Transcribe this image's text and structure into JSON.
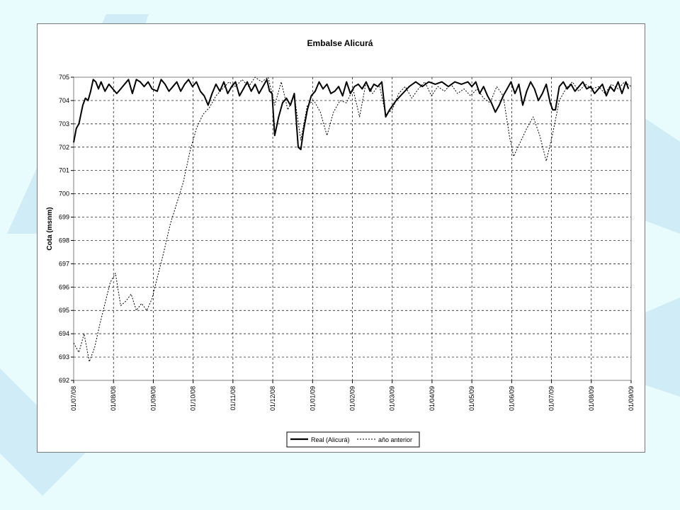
{
  "chart_data": {
    "type": "line",
    "title": "Embalse Alicurá",
    "xlabel": "",
    "ylabel": "Cota (msnm)",
    "ylim": [
      692,
      705
    ],
    "yticks": [
      692,
      693,
      694,
      695,
      696,
      697,
      698,
      699,
      700,
      701,
      702,
      703,
      704,
      705
    ],
    "xlim": [
      "2008-07-01",
      "2009-09-01"
    ],
    "xticks": [
      "01/07/08",
      "01/08/08",
      "01/09/08",
      "01/10/08",
      "01/11/08",
      "01/12/08",
      "01/01/09",
      "01/02/09",
      "01/03/09",
      "01/04/09",
      "01/05/09",
      "01/06/09",
      "01/07/09",
      "01/08/09",
      "01/09/09"
    ],
    "grid": true,
    "legend_position": "bottom-center",
    "series": [
      {
        "name": "Real (Alicurá)",
        "style": "solid-bold",
        "color": "#000000",
        "x": [
          "2008-07-01",
          "2008-07-03",
          "2008-07-05",
          "2008-07-08",
          "2008-07-10",
          "2008-07-12",
          "2008-07-14",
          "2008-07-16",
          "2008-07-18",
          "2008-07-20",
          "2008-07-22",
          "2008-07-25",
          "2008-07-28",
          "2008-07-31",
          "2008-08-03",
          "2008-08-06",
          "2008-08-09",
          "2008-08-12",
          "2008-08-15",
          "2008-08-18",
          "2008-08-21",
          "2008-08-24",
          "2008-08-27",
          "2008-08-30",
          "2008-09-03",
          "2008-09-06",
          "2008-09-09",
          "2008-09-12",
          "2008-09-15",
          "2008-09-18",
          "2008-09-21",
          "2008-09-24",
          "2008-09-27",
          "2008-09-30",
          "2008-10-03",
          "2008-10-06",
          "2008-10-09",
          "2008-10-12",
          "2008-10-15",
          "2008-10-18",
          "2008-10-21",
          "2008-10-24",
          "2008-10-27",
          "2008-10-30",
          "2008-11-02",
          "2008-11-05",
          "2008-11-08",
          "2008-11-11",
          "2008-11-14",
          "2008-11-17",
          "2008-11-20",
          "2008-11-23",
          "2008-11-26",
          "2008-11-28",
          "2008-11-30",
          "2008-12-02",
          "2008-12-05",
          "2008-12-08",
          "2008-12-11",
          "2008-12-14",
          "2008-12-17",
          "2008-12-20",
          "2008-12-22",
          "2008-12-24",
          "2008-12-27",
          "2008-12-30",
          "2009-01-02",
          "2009-01-05",
          "2009-01-08",
          "2009-01-11",
          "2009-01-14",
          "2009-01-17",
          "2009-01-20",
          "2009-01-23",
          "2009-01-26",
          "2009-01-29",
          "2009-02-01",
          "2009-02-04",
          "2009-02-07",
          "2009-02-10",
          "2009-02-13",
          "2009-02-16",
          "2009-02-19",
          "2009-02-22",
          "2009-02-25",
          "2009-02-28",
          "2009-03-05",
          "2009-03-10",
          "2009-03-15",
          "2009-03-20",
          "2009-03-25",
          "2009-03-30",
          "2009-04-04",
          "2009-04-09",
          "2009-04-14",
          "2009-04-19",
          "2009-04-24",
          "2009-04-29",
          "2009-05-02",
          "2009-05-05",
          "2009-05-08",
          "2009-05-11",
          "2009-05-14",
          "2009-05-17",
          "2009-05-20",
          "2009-05-23",
          "2009-05-26",
          "2009-05-29",
          "2009-06-01",
          "2009-06-04",
          "2009-06-07",
          "2009-06-10",
          "2009-06-13",
          "2009-06-16",
          "2009-06-19",
          "2009-06-22",
          "2009-06-25",
          "2009-06-28",
          "2009-07-01",
          "2009-07-03",
          "2009-07-05",
          "2009-07-08",
          "2009-07-11",
          "2009-07-14",
          "2009-07-17",
          "2009-07-20",
          "2009-07-23",
          "2009-07-26",
          "2009-07-29",
          "2009-08-01",
          "2009-08-04",
          "2009-08-07",
          "2009-08-10",
          "2009-08-13",
          "2009-08-16",
          "2009-08-19",
          "2009-08-22",
          "2009-08-25",
          "2009-08-28",
          "2009-08-30"
        ],
        "y": [
          702.2,
          702.8,
          703.0,
          703.8,
          704.1,
          704.0,
          704.4,
          704.9,
          704.8,
          704.5,
          704.8,
          704.4,
          704.7,
          704.5,
          704.3,
          704.5,
          704.7,
          704.9,
          704.3,
          704.9,
          704.8,
          704.6,
          704.8,
          704.5,
          704.4,
          704.9,
          704.7,
          704.4,
          704.6,
          704.8,
          704.4,
          704.7,
          704.9,
          704.6,
          704.8,
          704.4,
          704.2,
          703.8,
          704.3,
          704.7,
          704.4,
          704.8,
          704.3,
          704.6,
          704.8,
          704.2,
          704.5,
          704.8,
          704.4,
          704.7,
          704.3,
          704.6,
          704.9,
          704.4,
          704.3,
          702.5,
          703.3,
          703.9,
          704.1,
          703.8,
          704.3,
          702.0,
          701.9,
          702.7,
          703.6,
          704.2,
          704.4,
          704.8,
          704.5,
          704.7,
          704.3,
          704.4,
          704.6,
          704.2,
          704.8,
          704.3,
          704.6,
          704.7,
          704.5,
          704.8,
          704.4,
          704.7,
          704.6,
          704.8,
          703.3,
          703.6,
          704.0,
          704.3,
          704.6,
          704.8,
          704.6,
          704.8,
          704.7,
          704.8,
          704.6,
          704.8,
          704.7,
          704.8,
          704.6,
          704.8,
          704.3,
          704.6,
          704.2,
          703.9,
          703.5,
          703.8,
          704.2,
          704.5,
          704.8,
          704.3,
          704.7,
          703.8,
          704.4,
          704.8,
          704.5,
          704.0,
          704.3,
          704.7,
          703.9,
          703.6,
          703.6,
          704.6,
          704.8,
          704.5,
          704.7,
          704.4,
          704.6,
          704.8,
          704.5,
          704.6,
          704.3,
          704.5,
          704.7,
          704.2,
          704.6,
          704.4,
          704.8,
          704.3,
          704.8,
          704.5
        ]
      },
      {
        "name": "año anterior",
        "style": "dashed",
        "color": "#000000",
        "x": [
          "2008-07-01",
          "2008-07-05",
          "2008-07-09",
          "2008-07-13",
          "2008-07-17",
          "2008-07-21",
          "2008-07-25",
          "2008-07-29",
          "2008-08-02",
          "2008-08-06",
          "2008-08-10",
          "2008-08-14",
          "2008-08-18",
          "2008-08-22",
          "2008-08-26",
          "2008-08-30",
          "2008-09-03",
          "2008-09-08",
          "2008-09-13",
          "2008-09-18",
          "2008-09-23",
          "2008-09-28",
          "2008-10-03",
          "2008-10-08",
          "2008-10-13",
          "2008-10-18",
          "2008-10-23",
          "2008-10-28",
          "2008-11-02",
          "2008-11-07",
          "2008-11-12",
          "2008-11-17",
          "2008-11-22",
          "2008-11-27",
          "2008-12-02",
          "2008-12-07",
          "2008-12-12",
          "2008-12-17",
          "2008-12-22",
          "2008-12-27",
          "2009-01-01",
          "2009-01-06",
          "2009-01-11",
          "2009-01-16",
          "2009-01-21",
          "2009-01-26",
          "2009-01-31",
          "2009-02-05",
          "2009-02-10",
          "2009-02-15",
          "2009-02-20",
          "2009-02-25",
          "2009-03-02",
          "2009-03-07",
          "2009-03-12",
          "2009-03-17",
          "2009-03-22",
          "2009-03-27",
          "2009-04-01",
          "2009-04-06",
          "2009-04-11",
          "2009-04-16",
          "2009-04-21",
          "2009-04-26",
          "2009-05-01",
          "2009-05-06",
          "2009-05-11",
          "2009-05-16",
          "2009-05-21",
          "2009-05-26",
          "2009-05-31",
          "2009-06-03",
          "2009-06-08",
          "2009-06-13",
          "2009-06-18",
          "2009-06-23",
          "2009-06-28",
          "2009-07-03",
          "2009-07-08",
          "2009-07-13",
          "2009-07-18",
          "2009-07-23",
          "2009-07-28",
          "2009-08-02",
          "2009-08-07",
          "2009-08-12",
          "2009-08-17",
          "2009-08-22",
          "2009-08-27",
          "2009-09-01"
        ],
        "y": [
          693.6,
          693.2,
          694.0,
          692.8,
          693.4,
          694.4,
          695.3,
          696.2,
          696.6,
          695.2,
          695.4,
          695.7,
          695.0,
          695.3,
          695.0,
          695.5,
          696.4,
          697.5,
          698.7,
          699.6,
          700.5,
          701.8,
          702.8,
          703.4,
          703.7,
          704.2,
          704.5,
          704.8,
          704.6,
          704.9,
          704.6,
          705.0,
          704.8,
          705.0,
          703.8,
          704.8,
          703.6,
          704.2,
          702.3,
          703.8,
          704.0,
          703.5,
          702.5,
          703.5,
          704.0,
          703.9,
          704.5,
          703.3,
          704.8,
          704.3,
          704.7,
          703.4,
          703.6,
          704.3,
          704.6,
          704.1,
          704.5,
          704.8,
          704.2,
          704.6,
          704.4,
          704.7,
          704.3,
          704.5,
          704.2,
          704.5,
          704.1,
          703.9,
          704.6,
          704.2,
          702.4,
          701.6,
          702.2,
          702.8,
          703.3,
          702.5,
          701.4,
          702.6,
          704.0,
          704.5,
          704.8,
          704.4,
          704.7,
          704.5,
          704.6,
          704.3,
          704.7,
          704.5,
          704.8,
          704.6
        ]
      }
    ]
  }
}
